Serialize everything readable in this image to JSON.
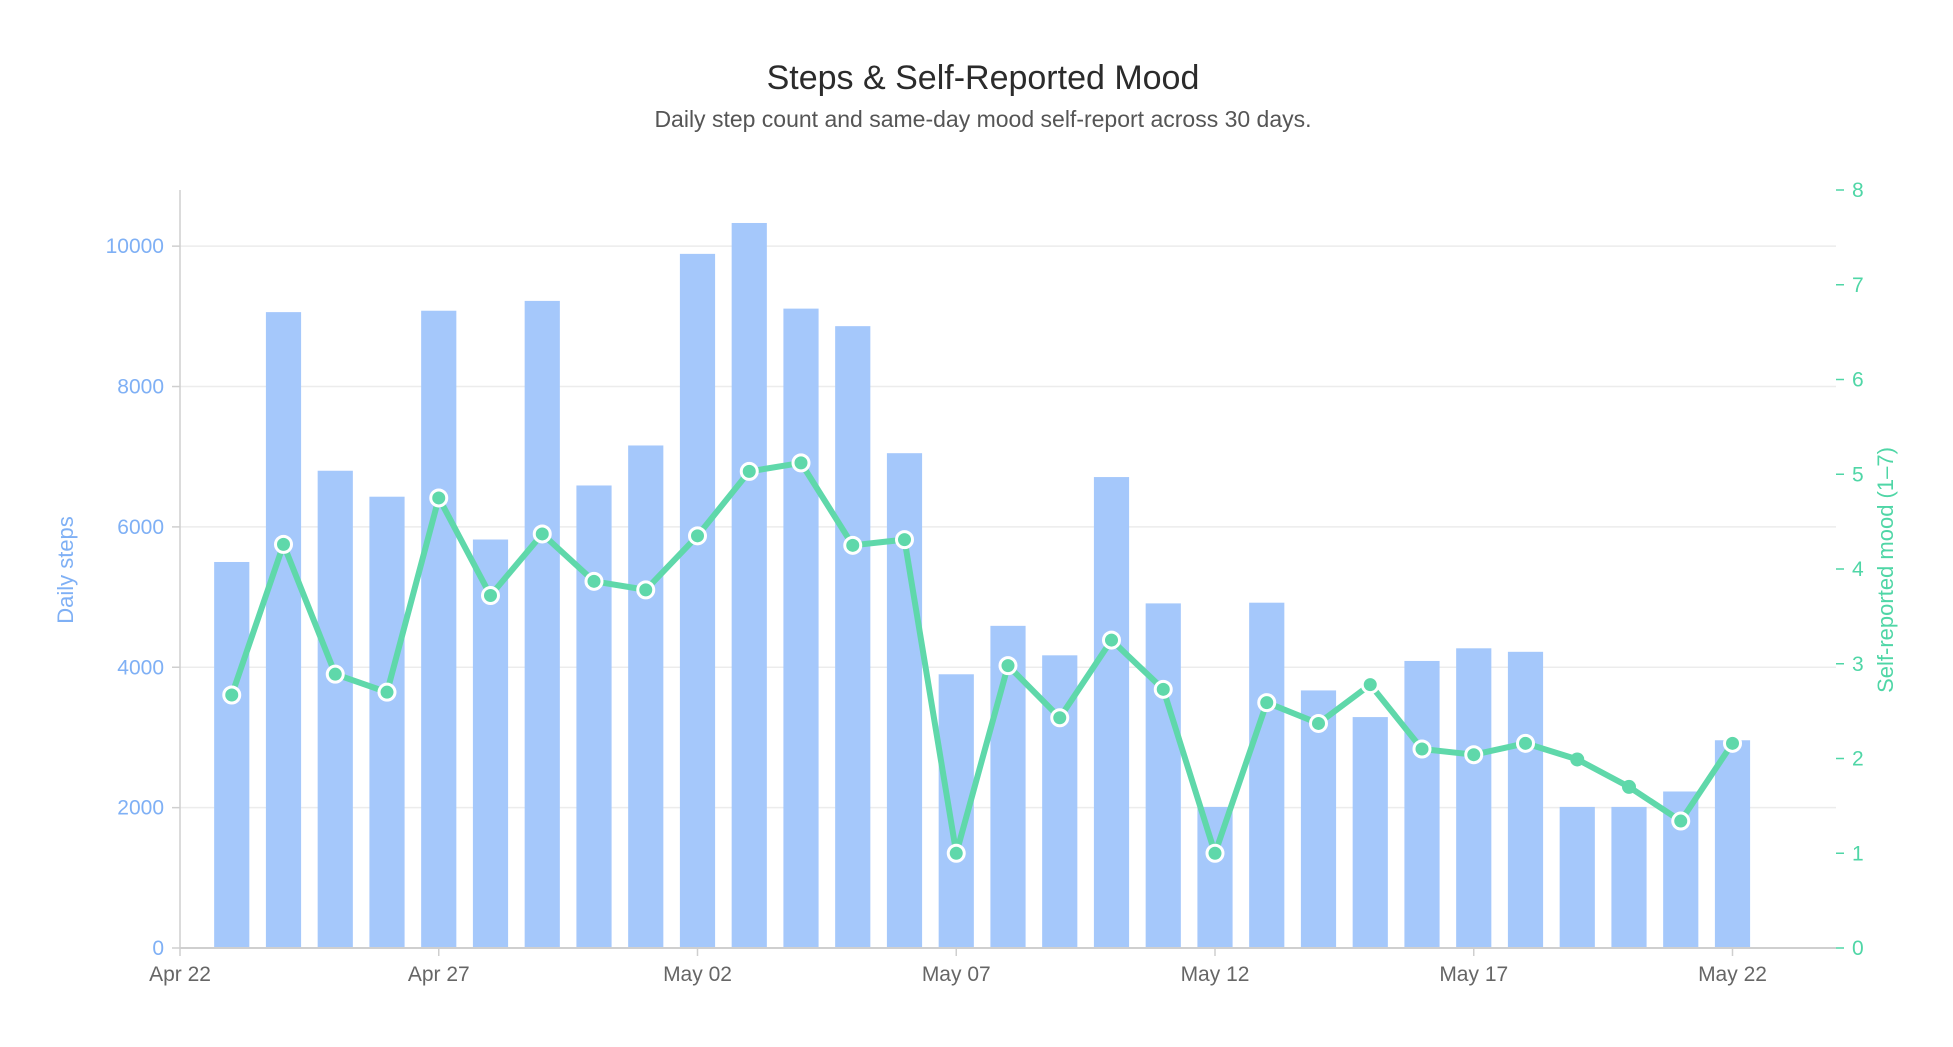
{
  "chart_data": {
    "type": "bar",
    "title": "Steps & Self-Reported Mood",
    "subtitle": "Daily step count and same-day mood self-report across 30 days.",
    "x_axis": {
      "type": "date",
      "range": [
        "2024-04-22",
        "2024-05-24"
      ],
      "tick_labels": [
        "Apr 22",
        "Apr 27",
        "May 02",
        "May 07",
        "May 12",
        "May 17",
        "May 22"
      ],
      "tick_dates": [
        "2024-04-22",
        "2024-04-27",
        "2024-05-02",
        "2024-05-07",
        "2024-05-12",
        "2024-05-17",
        "2024-05-22"
      ]
    },
    "y_left": {
      "label": "Daily steps",
      "ylim": [
        0,
        10800
      ],
      "ticks": [
        0,
        2000,
        4000,
        6000,
        8000,
        10000
      ],
      "color": "#7fb0f5"
    },
    "y_right": {
      "label": "Self-reported mood (1–7)",
      "ylim": [
        0,
        8
      ],
      "ticks": [
        0,
        1,
        2,
        3,
        4,
        5,
        6,
        7,
        8
      ],
      "color": "#4fd6a6"
    },
    "grid": "horizontal",
    "dates": [
      "2024-04-23",
      "2024-04-24",
      "2024-04-25",
      "2024-04-26",
      "2024-04-27",
      "2024-04-28",
      "2024-04-29",
      "2024-04-30",
      "2024-05-01",
      "2024-05-02",
      "2024-05-03",
      "2024-05-04",
      "2024-05-05",
      "2024-05-06",
      "2024-05-07",
      "2024-05-08",
      "2024-05-09",
      "2024-05-10",
      "2024-05-11",
      "2024-05-12",
      "2024-05-13",
      "2024-05-14",
      "2024-05-15",
      "2024-05-16",
      "2024-05-17",
      "2024-05-18",
      "2024-05-19",
      "2024-05-20",
      "2024-05-21",
      "2024-05-22"
    ],
    "series": [
      {
        "type": "bar",
        "axis": "left",
        "color": "#a5c8fb",
        "values": [
          5500,
          9060,
          6800,
          6430,
          9080,
          5820,
          9220,
          6590,
          7160,
          9890,
          10330,
          9110,
          8860,
          7050,
          3900,
          4590,
          4170,
          6710,
          4910,
          2010,
          4920,
          3670,
          3290,
          4090,
          4270,
          4220,
          2010,
          2010,
          2230,
          2960
        ]
      },
      {
        "type": "line",
        "axis": "right",
        "color": "#5fd8aa",
        "values": [
          2.67,
          4.26,
          2.89,
          2.7,
          4.75,
          3.72,
          4.37,
          3.87,
          3.78,
          4.35,
          5.03,
          5.12,
          4.25,
          4.31,
          1.0,
          2.98,
          2.43,
          3.25,
          2.73,
          1.0,
          2.59,
          2.37,
          2.78,
          2.1,
          2.04,
          2.16,
          1.99,
          1.7,
          1.34,
          2.16
        ],
        "outlined_points": [
          true,
          true,
          true,
          true,
          true,
          true,
          true,
          true,
          true,
          true,
          true,
          true,
          true,
          true,
          true,
          true,
          true,
          true,
          true,
          true,
          true,
          true,
          true,
          true,
          true,
          true,
          false,
          false,
          true,
          true
        ]
      }
    ]
  }
}
